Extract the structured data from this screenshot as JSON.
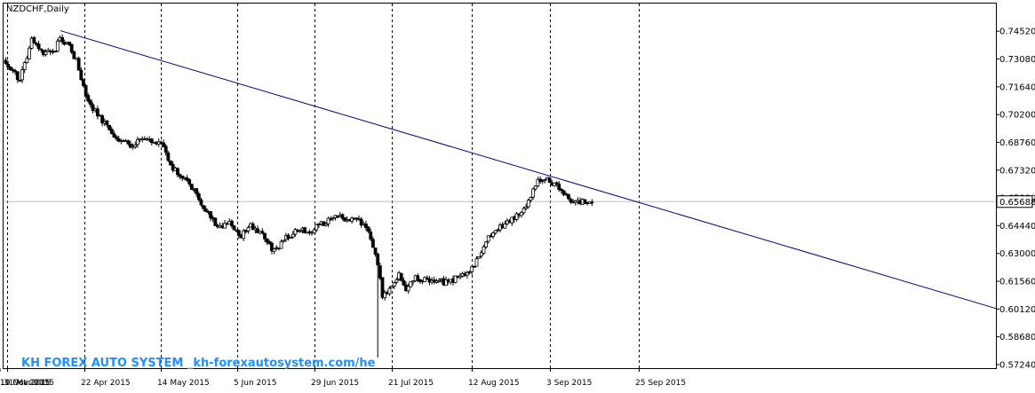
{
  "chart_data": {
    "type": "candlestick",
    "title": "NZDCHF,Daily",
    "watermark": "KH FOREX AUTO SYSTEM _kh-forexautosystem.com/he",
    "current_price_label": "0.65688",
    "current_price": 0.65688,
    "ylim": [
      0.57055,
      0.75955
    ],
    "y_ticks": [
      "0.74520",
      "0.73080",
      "0.71640",
      "0.70200",
      "0.68760",
      "0.67320",
      "0.65880",
      "0.64440",
      "0.63000",
      "0.61560",
      "0.60120",
      "0.58680",
      "0.57240"
    ],
    "x_ticks": [
      "31 Mar 2015",
      "22 Apr 2015",
      "14 May 2015",
      "5 Jun 2015",
      "29 Jun 2015",
      "21 Jul 2015",
      "12 Aug 2015",
      "3 Sep 2015",
      "25 Sep 2015",
      "19 Oct 2015",
      "10 Nov 2015"
    ],
    "grid": "vertical dashed separators",
    "trendline": {
      "x": [
        "22 Apr 2015",
        "beyond 10 Nov 2015"
      ],
      "y": [
        0.7455,
        0.6015
      ]
    },
    "colors": {
      "background": "#ffffff",
      "candle": "#000000",
      "trendline": "#00007f",
      "axis": "#000000",
      "watermark": "#1e90ff",
      "price_line": "#c0c0c0"
    },
    "anchors": [
      [
        0,
        0.729
      ],
      [
        6,
        0.72
      ],
      [
        11,
        0.7405
      ],
      [
        16,
        0.7335
      ],
      [
        21,
        0.736
      ],
      [
        23,
        0.7425
      ],
      [
        27,
        0.737
      ],
      [
        30,
        0.73
      ],
      [
        35,
        0.708
      ],
      [
        40,
        0.7005
      ],
      [
        46,
        0.6905
      ],
      [
        53,
        0.686
      ],
      [
        58,
        0.689
      ],
      [
        63,
        0.688
      ],
      [
        67,
        0.686
      ],
      [
        70,
        0.675
      ],
      [
        77,
        0.6685
      ],
      [
        84,
        0.654
      ],
      [
        90,
        0.644
      ],
      [
        95,
        0.646
      ],
      [
        100,
        0.639
      ],
      [
        104,
        0.6445
      ],
      [
        109,
        0.64
      ],
      [
        114,
        0.631
      ],
      [
        119,
        0.638
      ],
      [
        124,
        0.642
      ],
      [
        130,
        0.642
      ],
      [
        134,
        0.645
      ],
      [
        139,
        0.649
      ],
      [
        146,
        0.648
      ],
      [
        150,
        0.647
      ],
      [
        154,
        0.641
      ],
      [
        158,
        0.625
      ],
      [
        160,
        0.607
      ],
      [
        163,
        0.612
      ],
      [
        167,
        0.619
      ],
      [
        170,
        0.611
      ],
      [
        174,
        0.617
      ],
      [
        181,
        0.616
      ],
      [
        187,
        0.615
      ],
      [
        193,
        0.618
      ],
      [
        199,
        0.624
      ],
      [
        204,
        0.637
      ],
      [
        209,
        0.643
      ],
      [
        214,
        0.647
      ],
      [
        219,
        0.652
      ],
      [
        222,
        0.657
      ],
      [
        226,
        0.668
      ],
      [
        230,
        0.669
      ],
      [
        235,
        0.664
      ],
      [
        240,
        0.657
      ],
      [
        244,
        0.657
      ],
      [
        249,
        0.6565
      ]
    ]
  }
}
